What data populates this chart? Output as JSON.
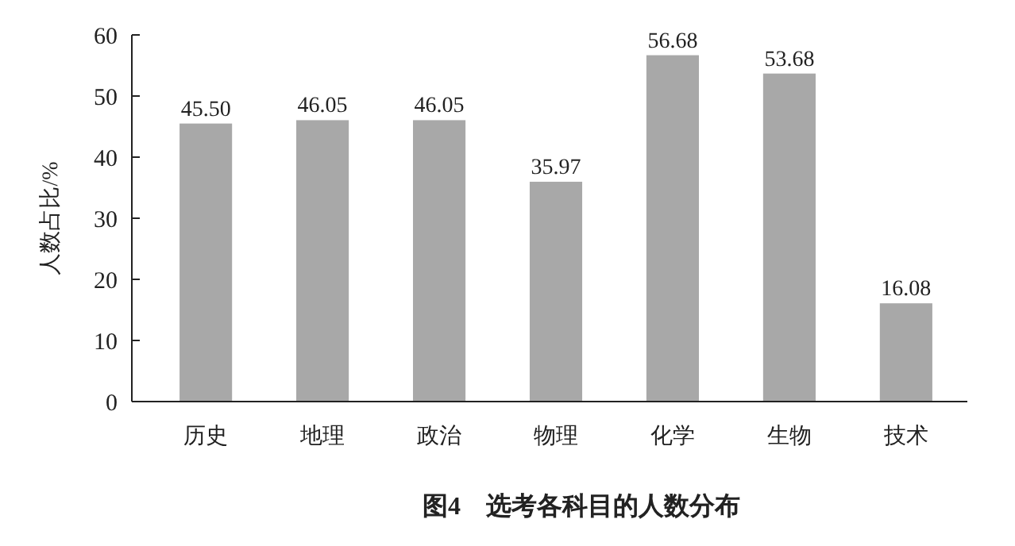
{
  "chart_data": {
    "type": "bar",
    "title": "图4　选考各科目的人数分布",
    "ylabel": "人数占比/%",
    "categories": [
      "历史",
      "地理",
      "政治",
      "物理",
      "化学",
      "生物",
      "技术"
    ],
    "values": [
      45.5,
      46.05,
      46.05,
      35.97,
      56.68,
      53.68,
      16.08
    ],
    "value_labels": [
      "45.50",
      "46.05",
      "46.05",
      "35.97",
      "56.68",
      "53.68",
      "16.08"
    ],
    "color": "#a8a8a8",
    "ylim": [
      0,
      60
    ],
    "yticks": [
      0,
      10,
      20,
      30,
      40,
      50,
      60
    ],
    "grid": false
  }
}
